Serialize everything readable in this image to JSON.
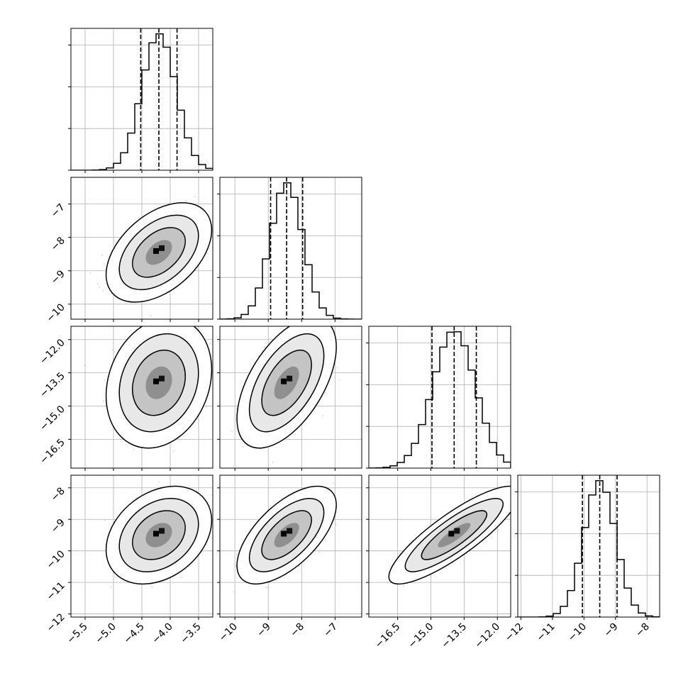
{
  "chart_data": {
    "type": "corner",
    "title": "",
    "parameters": [
      {
        "ticks": [
          -5.5,
          -5.0,
          -4.5,
          -4.0,
          -3.5
        ],
        "tick_labels": [
          "−5.5",
          "−5.0",
          "−4.5",
          "−4.0",
          "−3.5"
        ],
        "range": [
          -5.75,
          -3.25
        ],
        "mean": -4.2,
        "sd": 0.3,
        "quantiles": [
          -4.52,
          -4.2,
          -3.88
        ]
      },
      {
        "ticks": [
          -10,
          -9,
          -8,
          -7
        ],
        "tick_labels": [
          "−10",
          "−9",
          "−8",
          "−7"
        ],
        "range": [
          -10.45,
          -6.2
        ],
        "mean": -8.45,
        "sd": 0.48,
        "quantiles": [
          -8.93,
          -8.45,
          -7.97
        ]
      },
      {
        "ticks": [
          -16.5,
          -15.0,
          -13.5,
          -12.0
        ],
        "tick_labels": [
          "−16.5",
          "−15.0",
          "−13.5",
          "−12.0"
        ],
        "range": [
          -17.8,
          -11.4
        ],
        "mean": -13.95,
        "sd": 0.95,
        "quantiles": [
          -14.95,
          -13.95,
          -12.95
        ]
      },
      {
        "ticks": [
          -12,
          -11,
          -10,
          -9,
          -8
        ],
        "tick_labels": [
          "−12",
          "−11",
          "−10",
          "−9",
          "−8"
        ],
        "range": [
          -12.1,
          -7.6
        ],
        "mean": -9.5,
        "sd": 0.5,
        "quantiles": [
          -10.05,
          -9.5,
          -8.95
        ]
      }
    ],
    "histogram_bins": 20,
    "correlations": [
      {
        "row": 1,
        "col": 0,
        "rho": 0.45
      },
      {
        "row": 2,
        "col": 0,
        "rho": 0.2
      },
      {
        "row": 2,
        "col": 1,
        "rho": 0.55
      },
      {
        "row": 3,
        "col": 0,
        "rho": 0.3
      },
      {
        "row": 3,
        "col": 1,
        "rho": 0.62
      },
      {
        "row": 3,
        "col": 2,
        "rho": 0.85
      }
    ],
    "contour_levels_sigma": [
      0.5,
      1.0,
      1.5,
      2.0
    ],
    "grid": true,
    "scatter_color": "#7f7f7f",
    "line_color": "#000000"
  }
}
